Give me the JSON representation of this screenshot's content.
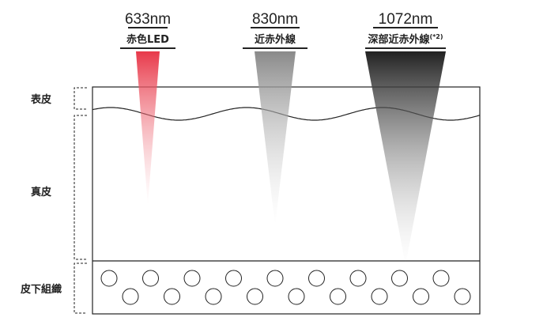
{
  "beams": [
    {
      "wavelength": "633nm",
      "name": "赤色LED"
    },
    {
      "wavelength": "830nm",
      "name": "近赤外線"
    },
    {
      "wavelength": "1072nm",
      "name": "深部近赤外線",
      "note": "(*2)"
    }
  ],
  "layers": [
    "表皮",
    "真皮",
    "皮下組織"
  ]
}
